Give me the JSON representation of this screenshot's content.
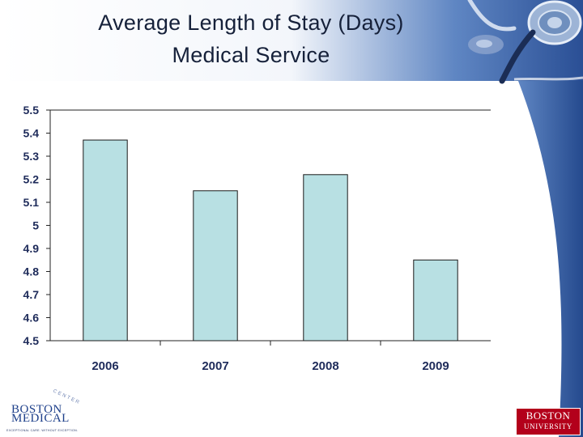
{
  "title_line1": "Average Length of Stay (Days)",
  "title_line2": "Medical Service",
  "colors": {
    "bar_fill": "#b8e0e3",
    "bar_stroke": "#1a1a1a",
    "accent_blue": "#2f5597",
    "title": "#16213a",
    "tick_label": "#1e2b5a"
  },
  "chart_data": {
    "type": "bar",
    "title": "Average Length of Stay (Days) Medical Service",
    "xlabel": "",
    "ylabel": "",
    "categories": [
      "2006",
      "2007",
      "2008",
      "2009"
    ],
    "values": [
      5.37,
      5.15,
      5.22,
      4.85
    ],
    "ylim": [
      4.5,
      5.5
    ],
    "yticks": [
      "5.5",
      "5.4",
      "5.3",
      "5.2",
      "5.1",
      "5",
      "4.9",
      "4.8",
      "4.7",
      "4.6",
      "4.5"
    ],
    "grid": false,
    "legend": "none"
  },
  "logos": {
    "boston_medical_line1": "BOSTON",
    "boston_medical_line2": "MEDICAL",
    "boston_medical_center": "CENTER",
    "boston_medical_tagline": "EXCEPTIONAL CARE. WITHOUT EXCEPTION.",
    "bu_line1": "BOSTON",
    "bu_line2": "UNIVERSITY"
  },
  "icons": {
    "stethoscope": "stethoscope-icon"
  }
}
